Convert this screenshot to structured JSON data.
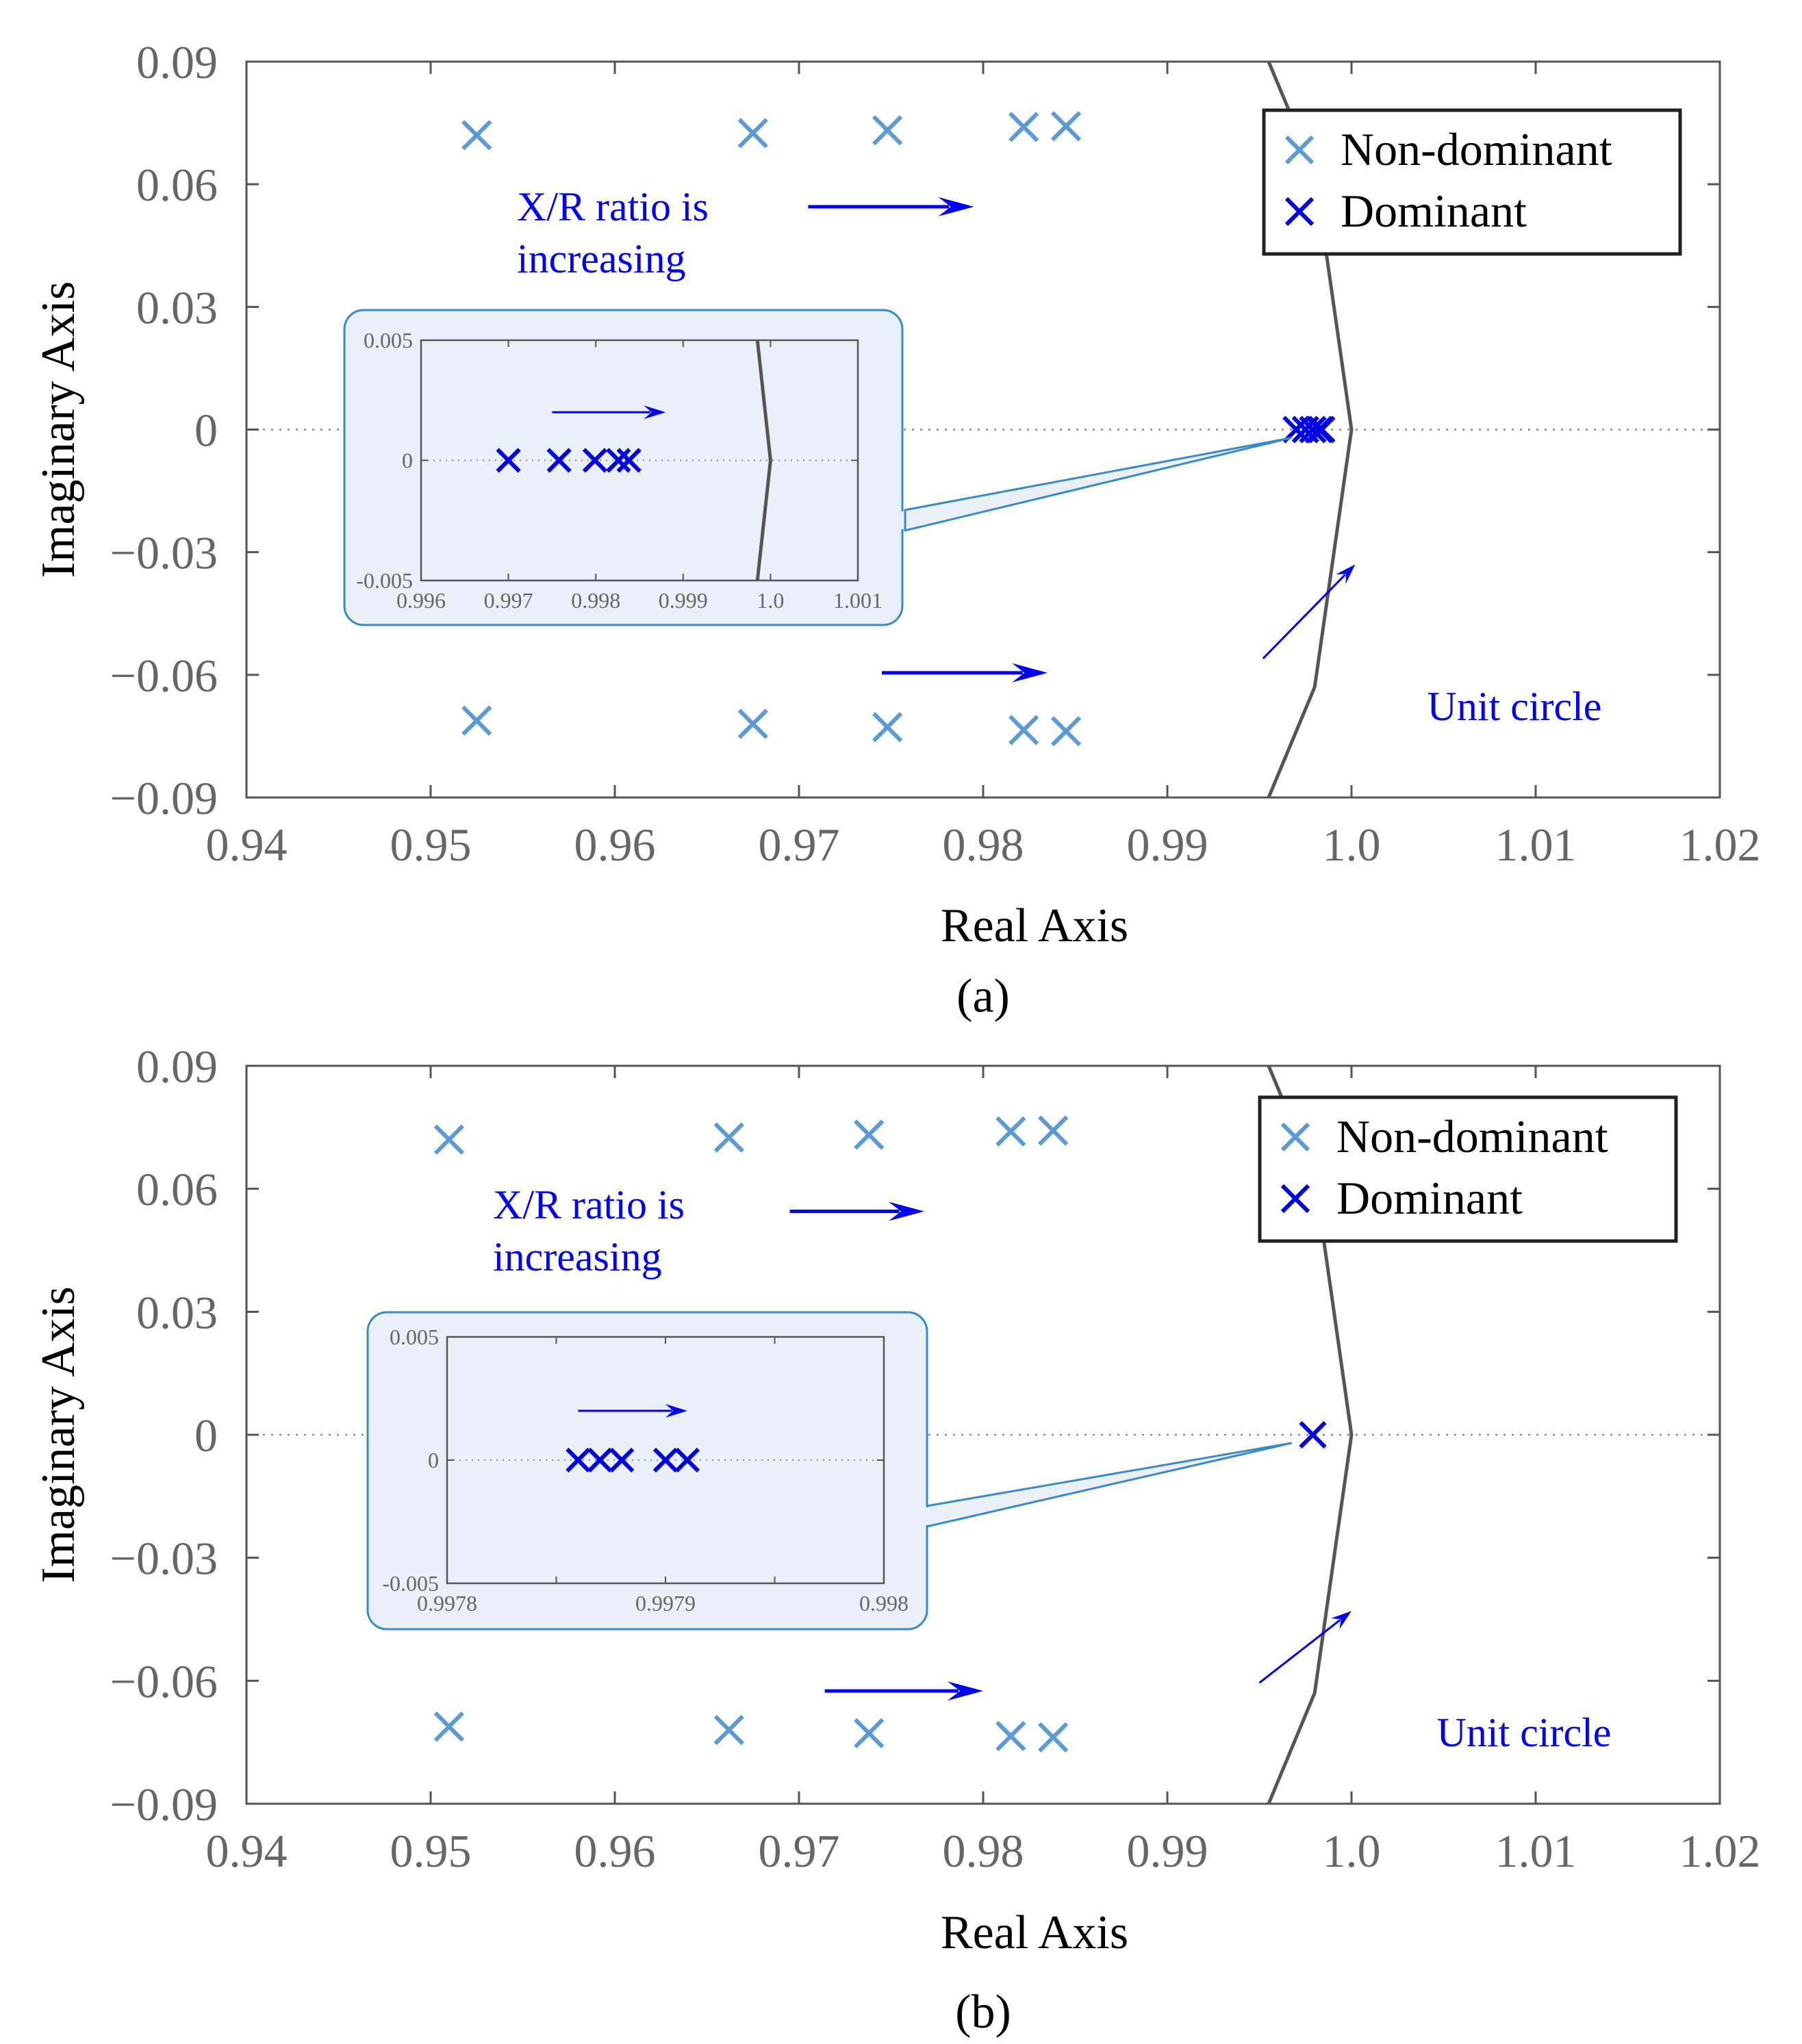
{
  "colors": {
    "non_dominant": "#5b9bd5",
    "dominant": "#0000e6",
    "unit_circle": "#555555",
    "axis": "#555555",
    "tick_text": "#666666",
    "annotation": "#0000ff",
    "inset_fill": "#e9f0f7",
    "inset_border": "#3a8ac8",
    "grid_dotted": "#888888"
  },
  "chart_data": [
    {
      "panel_label": "(a)",
      "type": "scatter",
      "title": "",
      "xlabel": "Real Axis",
      "ylabel": "Imaginary Axis",
      "xlim": [
        0.94,
        1.02
      ],
      "ylim": [
        -0.09,
        0.09
      ],
      "xticks": [
        "0.94",
        "0.95",
        "0.96",
        "0.97",
        "0.98",
        "0.99",
        "1.0",
        "1.01",
        "1.02"
      ],
      "yticks": [
        "0.09",
        "0.06",
        "0.03",
        "0",
        "−0.03",
        "−0.06",
        "−0.09"
      ],
      "legend": {
        "position": "top-right",
        "entries": [
          "Non-dominant",
          "Dominant"
        ]
      },
      "series": [
        {
          "name": "Non-dominant",
          "points": [
            [
              0.9525,
              0.072
            ],
            [
              0.9675,
              0.0725
            ],
            [
              0.9748,
              0.0732
            ],
            [
              0.9822,
              0.074
            ],
            [
              0.9845,
              0.0742
            ],
            [
              0.9525,
              -0.0712
            ],
            [
              0.9675,
              -0.072
            ],
            [
              0.9748,
              -0.0728
            ],
            [
              0.9822,
              -0.0735
            ],
            [
              0.9845,
              -0.0738
            ]
          ]
        },
        {
          "name": "Dominant",
          "points": [
            [
              0.997,
              0
            ],
            [
              0.9975,
              0
            ],
            [
              0.9979,
              0
            ],
            [
              0.99826,
              0
            ],
            [
              0.99838,
              0
            ]
          ]
        }
      ],
      "unit_circle": [
        [
          0.9955,
          0.09
        ],
        [
          0.998,
          0.063
        ],
        [
          1.0,
          0
        ],
        [
          0.998,
          -0.063
        ],
        [
          0.9955,
          -0.09
        ]
      ],
      "annotations": {
        "ratio_text": [
          "X/R ratio is",
          "increasing"
        ],
        "unit_circle_label": "Unit circle"
      },
      "arrows": [
        {
          "from": [
            0.9705,
            0.0545
          ],
          "to": [
            0.9795,
            0.0545
          ]
        },
        {
          "from": [
            0.9745,
            -0.0595
          ],
          "to": [
            0.9835,
            -0.0595
          ]
        },
        {
          "from": [
            0.9952,
            -0.056
          ],
          "to": [
            1.0002,
            -0.033
          ],
          "kind": "pointer"
        }
      ],
      "inset": {
        "xlim": [
          0.996,
          1.001
        ],
        "ylim": [
          -0.005,
          0.005
        ],
        "xticks": [
          "0.996",
          "0.997",
          "0.998",
          "0.999",
          "1.0",
          "1.001"
        ],
        "yticks": [
          "0.005",
          "0",
          "-0.005"
        ],
        "points": [
          [
            0.997,
            0
          ],
          [
            0.99758,
            0
          ],
          [
            0.99799,
            0
          ],
          [
            0.99826,
            0
          ],
          [
            0.99838,
            0
          ]
        ],
        "unit_circle": [
          [
            0.99985,
            0.005
          ],
          [
            1.0,
            0
          ],
          [
            0.99985,
            -0.005
          ]
        ],
        "arrow": {
          "from": [
            0.9975,
            0.002
          ],
          "to": [
            0.9988,
            0.002
          ]
        },
        "zoom_target": [
          0.9975,
          0
        ]
      }
    },
    {
      "panel_label": "(b)",
      "type": "scatter",
      "title": "",
      "xlabel": "Real Axis",
      "ylabel": "Imaginary Axis",
      "xlim": [
        0.94,
        1.02
      ],
      "ylim": [
        -0.09,
        0.09
      ],
      "xticks": [
        "0.94",
        "0.95",
        "0.96",
        "0.97",
        "0.98",
        "0.99",
        "1.0",
        "1.01",
        "1.02"
      ],
      "yticks": [
        "0.09",
        "0.06",
        "0.03",
        "0",
        "−0.03",
        "−0.06",
        "−0.09"
      ],
      "legend": {
        "position": "top-right",
        "entries": [
          "Non-dominant",
          "Dominant"
        ]
      },
      "series": [
        {
          "name": "Non-dominant",
          "points": [
            [
              0.951,
              0.072
            ],
            [
              0.9662,
              0.0725
            ],
            [
              0.9738,
              0.0732
            ],
            [
              0.9815,
              0.074
            ],
            [
              0.9838,
              0.0742
            ],
            [
              0.951,
              -0.0712
            ],
            [
              0.9662,
              -0.072
            ],
            [
              0.9738,
              -0.0728
            ],
            [
              0.9815,
              -0.0735
            ],
            [
              0.9838,
              -0.0738
            ]
          ]
        },
        {
          "name": "Dominant",
          "points": [
            [
              0.9979,
              0
            ]
          ]
        }
      ],
      "unit_circle": [
        [
          0.9955,
          0.09
        ],
        [
          0.998,
          0.063
        ],
        [
          1.0,
          0
        ],
        [
          0.998,
          -0.063
        ],
        [
          0.9955,
          -0.09
        ]
      ],
      "annotations": {
        "ratio_text": [
          "X/R ratio is",
          "increasing"
        ],
        "unit_circle_label": "Unit circle"
      },
      "arrows": [
        {
          "from": [
            0.9695,
            0.0545
          ],
          "to": [
            0.9768,
            0.0545
          ]
        },
        {
          "from": [
            0.9714,
            -0.0625
          ],
          "to": [
            0.98,
            -0.0625
          ]
        },
        {
          "from": [
            0.995,
            -0.0605
          ],
          "to": [
            1.0,
            -0.043
          ],
          "kind": "pointer"
        }
      ],
      "inset": {
        "xlim": [
          0.9978,
          0.998
        ],
        "ylim": [
          -0.005,
          0.005
        ],
        "xticks": [
          "0.9978",
          "",
          "0.9979",
          "",
          "0.998"
        ],
        "yticks": [
          "0.005",
          "0",
          "-0.005"
        ],
        "points": [
          [
            0.99786,
            0
          ],
          [
            0.99787,
            0
          ],
          [
            0.99788,
            0
          ],
          [
            0.9979,
            0
          ],
          [
            0.99791,
            0
          ]
        ],
        "unit_circle": [],
        "arrow": {
          "from": [
            0.99786,
            0.002
          ],
          "to": [
            0.99791,
            0.002
          ]
        },
        "zoom_target": [
          0.9975,
          0
        ]
      }
    }
  ]
}
